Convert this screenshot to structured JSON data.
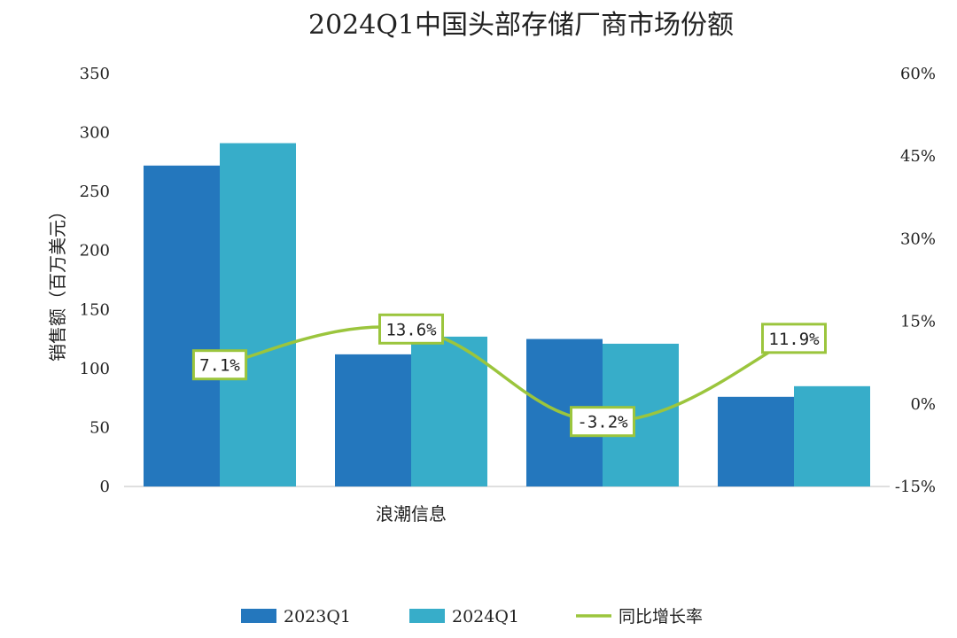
{
  "chart_data": {
    "type": "bar",
    "title": "2024Q1中国头部存储厂商市场份额",
    "ylabel": "销售额（百万美元）",
    "categories": [
      "",
      "浪潮信息",
      "",
      ""
    ],
    "ylim": [
      0,
      350
    ],
    "y_ticks": [
      "0",
      "50",
      "100",
      "150",
      "200",
      "250",
      "300",
      "350"
    ],
    "y2lim": [
      -15,
      60
    ],
    "y2_ticks": [
      "-15%",
      "0%",
      "15%",
      "30%",
      "45%",
      "60%"
    ],
    "series": [
      {
        "name": "2023Q1",
        "values": [
          272,
          112,
          125,
          76
        ],
        "color": "#2477BD",
        "axis": "left"
      },
      {
        "name": "2024Q1",
        "values": [
          291,
          127,
          121,
          85
        ],
        "color": "#37ADC9",
        "axis": "left"
      }
    ],
    "line": {
      "name": "同比增长率",
      "values": [
        7.1,
        13.6,
        -3.2,
        11.9
      ],
      "labels": [
        "7.1%",
        "13.6%",
        "-3.2%",
        "11.9%"
      ],
      "color": "#9BC53D",
      "axis": "right"
    },
    "grid": false,
    "legend_position": "bottom"
  }
}
